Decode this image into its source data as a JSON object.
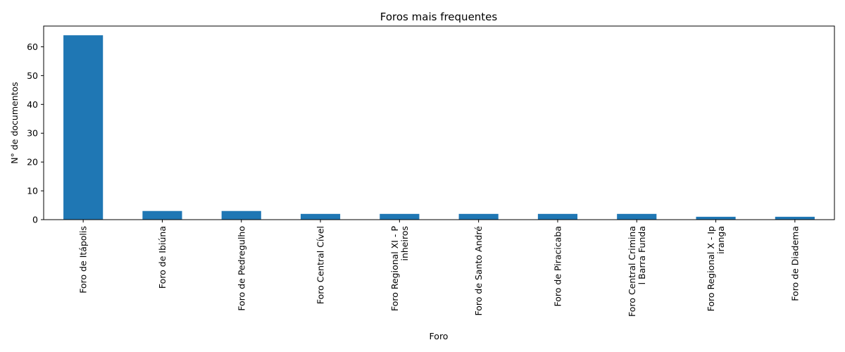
{
  "chart_data": {
    "type": "bar",
    "title": "Foros mais frequentes",
    "xlabel": "Foro",
    "ylabel": "N° de documentos",
    "categories": [
      [
        "Foro de Itápolis"
      ],
      [
        "Foro de Ibiúna"
      ],
      [
        "Foro de Pedregulho"
      ],
      [
        "Foro Central Cível"
      ],
      [
        "Foro Regional XI - P",
        "inheiros"
      ],
      [
        "Foro de Santo André"
      ],
      [
        "Foro de Piracicaba"
      ],
      [
        "Foro Central Crimina",
        "l Barra Funda"
      ],
      [
        "Foro Regional X - Ip",
        "iranga"
      ],
      [
        "Foro de Diadema"
      ]
    ],
    "values": [
      64,
      3,
      3,
      2,
      2,
      2,
      2,
      2,
      1,
      1
    ],
    "ylim": [
      0,
      67.2
    ],
    "yticks": [
      0,
      10,
      20,
      30,
      40,
      50,
      60
    ],
    "bar_color": "#1f77b4",
    "grid": false,
    "legend": "none"
  }
}
